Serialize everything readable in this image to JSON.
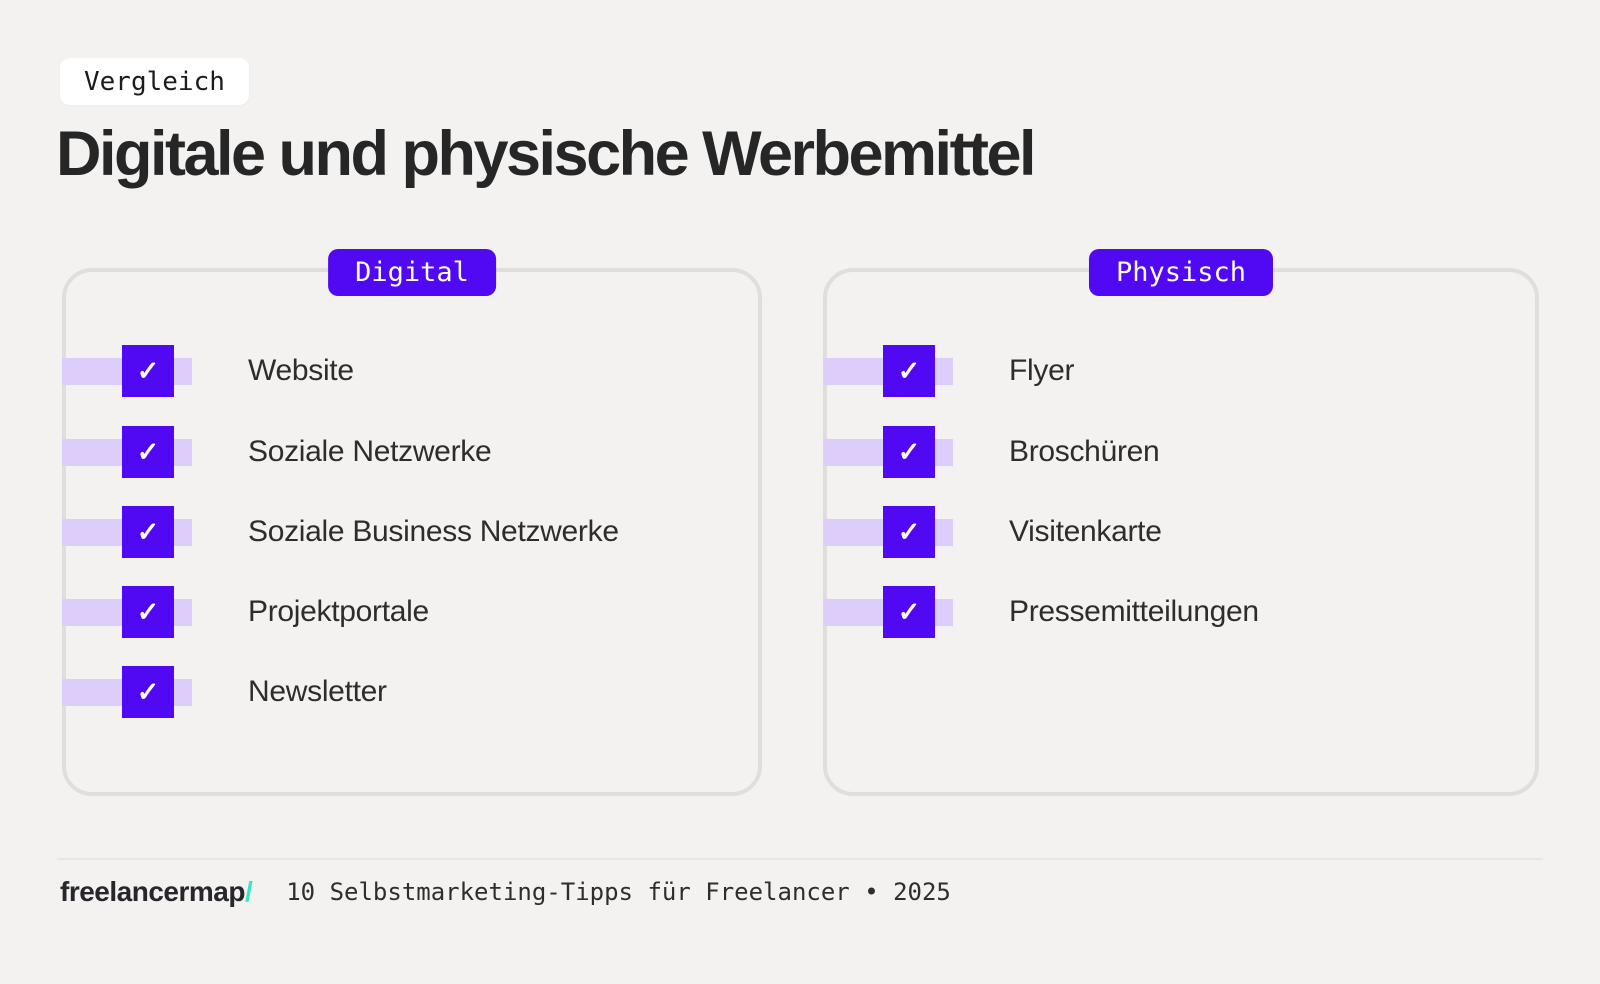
{
  "page": {
    "background_color": "#f3f2f1",
    "accent_color": "#5009f2",
    "accent_light_color": "#dccdfa",
    "mint_color": "#35e7c4"
  },
  "header": {
    "tag": "Vergleich",
    "title": "Digitale und physische Werbemittel"
  },
  "icons": {
    "check": "✓"
  },
  "cards": [
    {
      "badge": "Digital",
      "items": [
        "Website",
        "Soziale Netzwerke",
        "Soziale Business Netzwerke",
        "Projektportale",
        "Newsletter"
      ]
    },
    {
      "badge": "Physisch",
      "items": [
        "Flyer",
        "Broschüren",
        "Visitenkarte",
        "Pressemitteilungen"
      ]
    }
  ],
  "footer": {
    "logo": "freelancermap",
    "logo_slash": "/",
    "caption": "10 Selbstmarketing-Tipps für Freelancer • 2025"
  }
}
